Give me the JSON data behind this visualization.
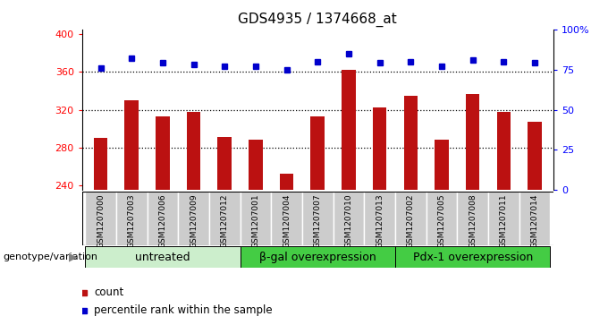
{
  "title": "GDS4935 / 1374668_at",
  "samples": [
    "GSM1207000",
    "GSM1207003",
    "GSM1207006",
    "GSM1207009",
    "GSM1207012",
    "GSM1207001",
    "GSM1207004",
    "GSM1207007",
    "GSM1207010",
    "GSM1207013",
    "GSM1207002",
    "GSM1207005",
    "GSM1207008",
    "GSM1207011",
    "GSM1207014"
  ],
  "counts": [
    290,
    330,
    313,
    318,
    291,
    288,
    252,
    313,
    362,
    322,
    335,
    288,
    337,
    318,
    307
  ],
  "percentiles": [
    76,
    82,
    79,
    78,
    77,
    77,
    75,
    80,
    85,
    79,
    80,
    77,
    81,
    80,
    79
  ],
  "groups": [
    {
      "label": "untreated",
      "start": 0,
      "end": 4,
      "color": "#cceecc"
    },
    {
      "label": "β-gal overexpression",
      "start": 5,
      "end": 9,
      "color": "#44cc44"
    },
    {
      "label": "Pdx-1 overexpression",
      "start": 10,
      "end": 14,
      "color": "#44cc44"
    }
  ],
  "ylim_left": [
    235,
    405
  ],
  "ylim_right": [
    0,
    100
  ],
  "yticks_left": [
    240,
    280,
    320,
    360,
    400
  ],
  "yticks_right": [
    0,
    25,
    50,
    75,
    100
  ],
  "yticklabels_right": [
    "0",
    "25",
    "50",
    "75",
    "100%"
  ],
  "bar_color": "#bb1111",
  "dot_color": "#0000cc",
  "bg_color": "#cccccc",
  "xlabel_genotype": "genotype/variation",
  "legend_count_label": "count",
  "legend_percentile_label": "percentile rank within the sample",
  "title_fontsize": 11,
  "tick_fontsize": 8,
  "group_label_fontsize": 9,
  "sample_fontsize": 6.5
}
